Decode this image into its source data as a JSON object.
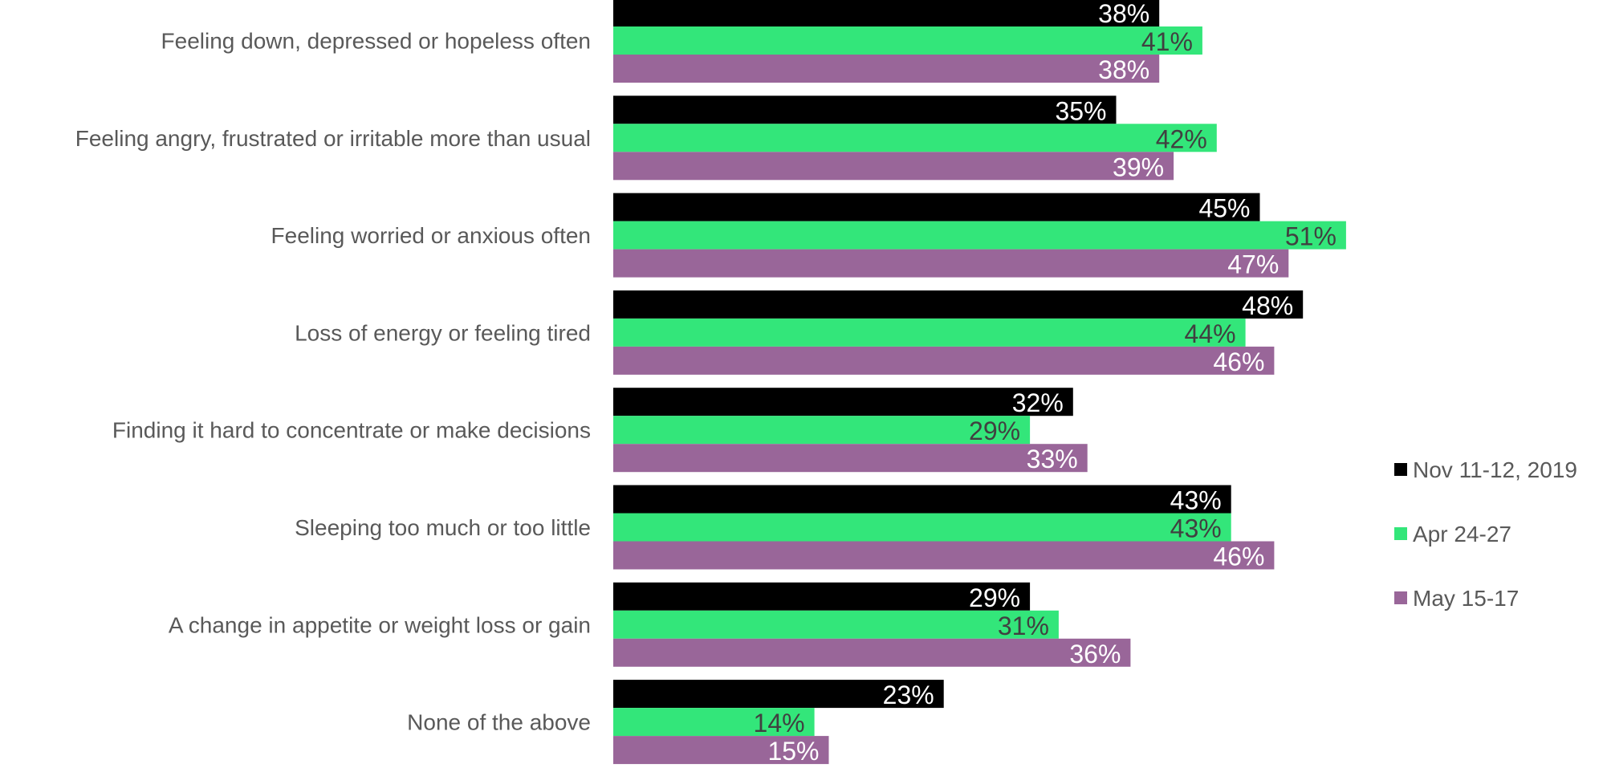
{
  "chart_data": {
    "type": "bar",
    "orientation": "horizontal",
    "title": "",
    "xlabel": "",
    "ylabel": "",
    "xlim": [
      0,
      100
    ],
    "grid": false,
    "legend_position": "right",
    "categories": [
      "Feeling down, depressed or hopeless often",
      "Feeling angry, frustrated or irritable more than usual",
      "Feeling worried or anxious often",
      "Loss of energy or feeling tired",
      "Finding it hard to concentrate or make decisions",
      "Sleeping too much or too little",
      "A change in appetite or weight loss or gain",
      "None of the above"
    ],
    "series": [
      {
        "name": "Nov 11-12, 2019",
        "color": "#000000",
        "label_color": "#ffffff",
        "values": [
          38,
          35,
          45,
          48,
          32,
          43,
          29,
          23
        ],
        "labels": [
          "38%",
          "35%",
          "45%",
          "48%",
          "32%",
          "43%",
          "29%",
          "23%"
        ]
      },
      {
        "name": "Apr 24-27",
        "color": "#33e67a",
        "label_color": "#404040",
        "values": [
          41,
          42,
          51,
          44,
          29,
          43,
          31,
          14
        ],
        "labels": [
          "41%",
          "42%",
          "51%",
          "44%",
          "29%",
          "43%",
          "31%",
          "14%"
        ]
      },
      {
        "name": "May 15-17",
        "color": "#996699",
        "label_color": "#ffffff",
        "values": [
          38,
          39,
          47,
          46,
          33,
          46,
          36,
          15
        ],
        "labels": [
          "38%",
          "39%",
          "47%",
          "46%",
          "33%",
          "46%",
          "36%",
          "15%"
        ]
      }
    ]
  }
}
